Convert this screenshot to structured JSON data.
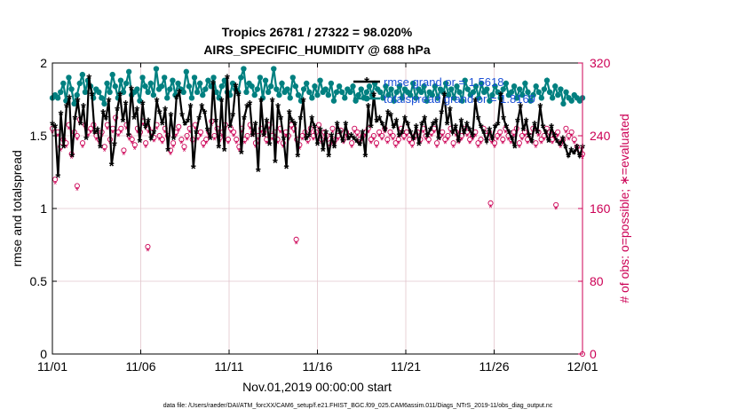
{
  "chart_data": {
    "type": "line",
    "title": "Tropics 26781 / 27322 = 98.020%",
    "subtitle": "AIRS_SPECIFIC_HUMIDITY @ 688 hPa",
    "xlabel": "Nov.01,2019 00:00:00 start",
    "ylabel": "rmse and totalspread",
    "ylabel_right": "# of obs: o=possible; ∗=evaluated",
    "x_tick_labels": [
      "11/01",
      "11/06",
      "11/11",
      "11/16",
      "11/21",
      "11/26",
      "12/01"
    ],
    "y_tick_labels": [
      "0",
      "0.5",
      "1",
      "1.5",
      "2"
    ],
    "y2_tick_labels": [
      "0",
      "80",
      "160",
      "240",
      "320"
    ],
    "ylim": [
      0,
      2
    ],
    "y2lim": [
      0,
      320
    ],
    "xlim": [
      0,
      30
    ],
    "footer": "data file: /Users/raeder/DAI/ATM_forcXX/CAM6_setup/f.e21.FHIST_BGC.f09_025.CAM6assim.011/Diags_NTrS_2019-11/obs_diag_output.nc",
    "colors": {
      "rmse": "#000000",
      "spread": "#008080",
      "obs": "#cc0055",
      "legend_text": "#1a4fd6",
      "grid": "#e2c6cc"
    },
    "legend": [
      "rmse grand or = 1.5618",
      "totalspread grand or = 1.8169"
    ],
    "series": [
      {
        "name": "rmse",
        "values": [
          1.58,
          1.56,
          1.22,
          1.65,
          1.42,
          1.7,
          1.76,
          1.36,
          1.62,
          1.74,
          1.58,
          1.7,
          1.48,
          1.9,
          1.78,
          1.52,
          1.54,
          1.42,
          1.66,
          1.62,
          1.74,
          1.3,
          1.44,
          1.68,
          1.78,
          1.6,
          1.72,
          1.5,
          1.82,
          1.62,
          1.68,
          1.46,
          1.72,
          1.56,
          1.6,
          1.48,
          1.52,
          1.74,
          1.66,
          1.58,
          1.68,
          1.4,
          1.64,
          1.48,
          1.76,
          1.8,
          1.64,
          1.58,
          1.6,
          1.7,
          1.28,
          1.52,
          1.62,
          1.7,
          1.66,
          1.54,
          1.48,
          1.86,
          1.6,
          1.42,
          1.74,
          1.4,
          1.9,
          1.56,
          1.64,
          1.84,
          1.78,
          1.38,
          1.62,
          1.7,
          1.72,
          1.5,
          1.58,
          1.26,
          1.74,
          1.5,
          1.6,
          1.44,
          1.74,
          1.32,
          1.7,
          1.62,
          1.48,
          1.28,
          1.66,
          1.6,
          1.58,
          1.36,
          1.62,
          1.74,
          1.48,
          1.5,
          1.62,
          1.56,
          1.44,
          1.54,
          1.4,
          1.52,
          1.36,
          1.5,
          1.42,
          1.58,
          1.52,
          1.46,
          1.58,
          1.48,
          1.5,
          1.48,
          1.46,
          1.44,
          1.52,
          1.36,
          1.7,
          1.56,
          1.78,
          1.6,
          1.62,
          1.58,
          1.54,
          1.66,
          1.64,
          1.56,
          1.6,
          1.5,
          1.52,
          1.62,
          1.58,
          1.52,
          1.48,
          1.56,
          1.44,
          1.58,
          1.62,
          1.5,
          1.54,
          1.58,
          1.6,
          1.48,
          1.66,
          1.78,
          1.58,
          1.68,
          1.52,
          1.56,
          1.46,
          1.6,
          1.52,
          1.58,
          1.54,
          1.5,
          1.74,
          1.62,
          1.56,
          1.52,
          1.46,
          1.54,
          1.48,
          1.56,
          1.58,
          1.78,
          1.62,
          1.56,
          1.52,
          1.48,
          1.42,
          1.6,
          1.7,
          1.54,
          1.6,
          1.5,
          1.46,
          1.58,
          1.52,
          1.7,
          1.56,
          1.52,
          1.46,
          1.56,
          1.5,
          1.46,
          1.44,
          1.48,
          1.42,
          1.36,
          1.4,
          1.38,
          1.42,
          1.36,
          1.42
        ]
      },
      {
        "name": "totalspread",
        "values": [
          1.76,
          1.78,
          1.76,
          1.8,
          1.86,
          1.74,
          1.9,
          1.82,
          1.72,
          1.78,
          1.86,
          1.92,
          1.8,
          1.88,
          1.84,
          1.76,
          1.82,
          1.8,
          1.76,
          1.72,
          1.86,
          1.8,
          1.92,
          1.84,
          1.76,
          1.88,
          1.8,
          1.86,
          1.94,
          1.78,
          1.8,
          1.82,
          1.74,
          1.9,
          1.84,
          1.8,
          1.86,
          1.78,
          1.96,
          1.82,
          1.84,
          1.9,
          1.76,
          1.82,
          1.88,
          1.78,
          1.86,
          1.82,
          1.8,
          1.94,
          1.84,
          1.76,
          1.9,
          1.8,
          1.86,
          1.78,
          1.82,
          1.88,
          1.84,
          1.9,
          1.8,
          1.76,
          1.84,
          1.88,
          1.8,
          1.78,
          1.86,
          1.82,
          1.8,
          1.9,
          1.96,
          1.8,
          1.86,
          1.84,
          1.78,
          1.82,
          1.9,
          1.76,
          1.88,
          1.8,
          1.84,
          1.96,
          1.82,
          1.78,
          1.86,
          1.8,
          1.82,
          1.76,
          1.9,
          1.84,
          1.78,
          1.74,
          1.82,
          1.86,
          1.8,
          1.76,
          1.84,
          1.78,
          1.88,
          1.8,
          1.82,
          1.78,
          1.86,
          1.74,
          1.8,
          1.84,
          1.8,
          1.76,
          1.82,
          1.8,
          1.84,
          1.74,
          1.78,
          1.82,
          1.76,
          1.8,
          1.84,
          1.78,
          1.86,
          1.82,
          1.8,
          1.76,
          1.84,
          1.78,
          1.82,
          1.74,
          1.8,
          1.84,
          1.76,
          1.82,
          1.8,
          1.78,
          1.86,
          1.76,
          1.82,
          1.8,
          1.84,
          1.74,
          1.8,
          1.78,
          1.84,
          1.76,
          1.82,
          1.8,
          1.86,
          1.78,
          1.82,
          1.76,
          1.84,
          1.8,
          1.74,
          1.88,
          1.82,
          1.78,
          1.8,
          1.84,
          1.76,
          1.86,
          1.8,
          1.82,
          1.74,
          1.78,
          1.84,
          1.8,
          1.76,
          1.82,
          1.86,
          1.78,
          1.8,
          1.84,
          1.76,
          1.82,
          1.78,
          1.86,
          1.8,
          1.74,
          1.78,
          1.84,
          1.8,
          1.76,
          1.82,
          1.88,
          1.8,
          1.76,
          1.84,
          1.78,
          1.82,
          1.72,
          1.8,
          1.76,
          1.74,
          1.78,
          1.76,
          1.74,
          1.76
        ]
      },
      {
        "name": "possible",
        "values": [
          248,
          192,
          244,
          228,
          236,
          232,
          252,
          220,
          244,
          240,
          258,
          232,
          252,
          244,
          248,
          252,
          240,
          236,
          244,
          228,
          252,
          236,
          248,
          260,
          244,
          248,
          224,
          252,
          240,
          236,
          230,
          248,
          244,
          256,
          232,
          248,
          244,
          238,
          252,
          240,
          236,
          248,
          240,
          224,
          232,
          244,
          250,
          236,
          228,
          240,
          248,
          236,
          252,
          240,
          244,
          232,
          236,
          244,
          256,
          240,
          248,
          238,
          244,
          252,
          236,
          248,
          244,
          236,
          228,
          248,
          236,
          240,
          252,
          244,
          232,
          240,
          248,
          244,
          236,
          252,
          240,
          244,
          236,
          248,
          232,
          244,
          240,
          252,
          248,
          236,
          230,
          240,
          244,
          236,
          248,
          240,
          244,
          252,
          236,
          244,
          240,
          232,
          248,
          236,
          240,
          246,
          236,
          244,
          240,
          232,
          248,
          244,
          236,
          240,
          244,
          248,
          236,
          240,
          232,
          244,
          240,
          248,
          236,
          244,
          240,
          232,
          236,
          248,
          240,
          244,
          236,
          232,
          240,
          244,
          236,
          248,
          240,
          236,
          244,
          248,
          232,
          240,
          244,
          236,
          240,
          248,
          232,
          244,
          236,
          240,
          248,
          244,
          236,
          240,
          244,
          232,
          236,
          248,
          240,
          244,
          236,
          232,
          240,
          244,
          236,
          248,
          240,
          236,
          244,
          248,
          232,
          240,
          244,
          236,
          240,
          248,
          232,
          244,
          236,
          240,
          248,
          244,
          236,
          240,
          244,
          232,
          236,
          248,
          240,
          244,
          236,
          228,
          224,
          220
        ]
      },
      {
        "name": "evaluated",
        "values": [
          244,
          188,
          240,
          224,
          232,
          228,
          248,
          216,
          240,
          236,
          254,
          228,
          248,
          240,
          244,
          248,
          236,
          232,
          240,
          224,
          248,
          232,
          244,
          256,
          240,
          244,
          220,
          248,
          236,
          232,
          226,
          244,
          240,
          252,
          228,
          244,
          240,
          234,
          248,
          236,
          232,
          244,
          236,
          220,
          228,
          240,
          246,
          232,
          224,
          236,
          244,
          232,
          248,
          236,
          240,
          228,
          232,
          240,
          252,
          236,
          244,
          234,
          240,
          248,
          232,
          244,
          240,
          232,
          224,
          244,
          232,
          236,
          248,
          240,
          228,
          236,
          244,
          240,
          232,
          248,
          236,
          240,
          232,
          244,
          228,
          240,
          236,
          248,
          244,
          232,
          226,
          236,
          240,
          232,
          244,
          236,
          240,
          248,
          232,
          240,
          236,
          228,
          244,
          232,
          236,
          242,
          232,
          240,
          236,
          228,
          244,
          240,
          232,
          236,
          240,
          244,
          232,
          236,
          228,
          240,
          236,
          244,
          232,
          240,
          236,
          228,
          232,
          244,
          236,
          240,
          232,
          228,
          236,
          240,
          232,
          244,
          236,
          232,
          240,
          244,
          228,
          236,
          240,
          232,
          236,
          244,
          228,
          240,
          232,
          236,
          244,
          240,
          232,
          236,
          240,
          228,
          232,
          244,
          236,
          240,
          232,
          228,
          236,
          240,
          232,
          244,
          236,
          232,
          240,
          244,
          228,
          236,
          240,
          232,
          236,
          244,
          228,
          240,
          232,
          236,
          244,
          240,
          232,
          236,
          240,
          228,
          232,
          244,
          236,
          240,
          232,
          224,
          220,
          216
        ]
      }
    ],
    "outliers": {
      "possible": [
        [
          1.4,
          185
        ],
        [
          5.4,
          118
        ],
        [
          13.8,
          126
        ],
        [
          24.8,
          166
        ],
        [
          28.5,
          164
        ]
      ],
      "evaluated": [
        [
          1.4,
          181
        ],
        [
          5.4,
          114
        ],
        [
          13.8,
          122
        ],
        [
          24.8,
          162
        ],
        [
          28.5,
          160
        ]
      ]
    }
  }
}
